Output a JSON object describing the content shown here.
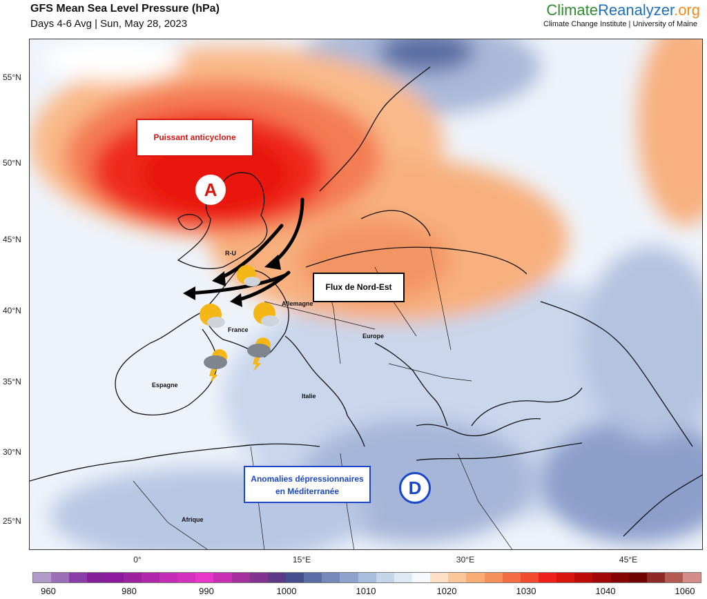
{
  "header": {
    "title": "GFS Mean Sea Level Pressure (hPa)",
    "subtitle": "Days 4-6 Avg | Sun, May 28, 2023",
    "brand_part1": "Climate",
    "brand_part2": "Reanalyzer",
    "brand_part3": ".org",
    "brand_subtitle": "Climate Change Institute | University of Maine"
  },
  "axes": {
    "lat_labels": [
      "55°N",
      "50°N",
      "45°N",
      "40°N",
      "35°N",
      "30°N",
      "25°N"
    ],
    "lon_labels": [
      "0°",
      "15°E",
      "30°E",
      "45°E"
    ]
  },
  "annotations": {
    "anticyclone_label": "Puissant anticyclone",
    "high_symbol": "A",
    "flow_label": "Flux de Nord-Est",
    "anomaly_label_line1": "Anomalies dépressionnaires",
    "anomaly_label_line2": "en Méditerranée",
    "low_symbol": "D"
  },
  "countries": {
    "uk": "R-U",
    "germany": "Allemagne",
    "france": "France",
    "europe": "Europe",
    "spain": "Espagne",
    "italy": "Italie",
    "africa": "Afrique"
  },
  "weather_icons": [
    "sun-cloud-icon",
    "sun-cloud-icon",
    "sun-cloud-icon",
    "thunderstorm-icon",
    "thunderstorm-icon"
  ],
  "colorbar": {
    "labels": [
      "960",
      "980",
      "990",
      "1000",
      "1010",
      "1020",
      "1030",
      "1040",
      "1060"
    ],
    "colors": [
      "#b09bc9",
      "#9b6fb8",
      "#8a3fa8",
      "#84209a",
      "#8d1a9c",
      "#9c229f",
      "#b027ac",
      "#c22cb6",
      "#d630c1",
      "#e736ca",
      "#c830b4",
      "#a62f9e",
      "#82338f",
      "#5e3a86",
      "#464f8e",
      "#5b6fa6",
      "#7489ba",
      "#8ea3cb",
      "#a9bedc",
      "#c5d6ea",
      "#dfe9f4",
      "#f5f8fc",
      "#fde0c5",
      "#fbc79a",
      "#f8ad74",
      "#f5915a",
      "#f26e42",
      "#f04a2f",
      "#ef1f1a",
      "#d8150f",
      "#bb0c0a",
      "#a00707",
      "#850404",
      "#6f0202",
      "#8d2a28",
      "#b45a55",
      "#d48e8a"
    ]
  },
  "colors": {
    "high_center": "#e8160c",
    "low_anomaly": "#9fb0d4",
    "label_red": "#d9150f",
    "label_blue": "#1a47c9"
  }
}
